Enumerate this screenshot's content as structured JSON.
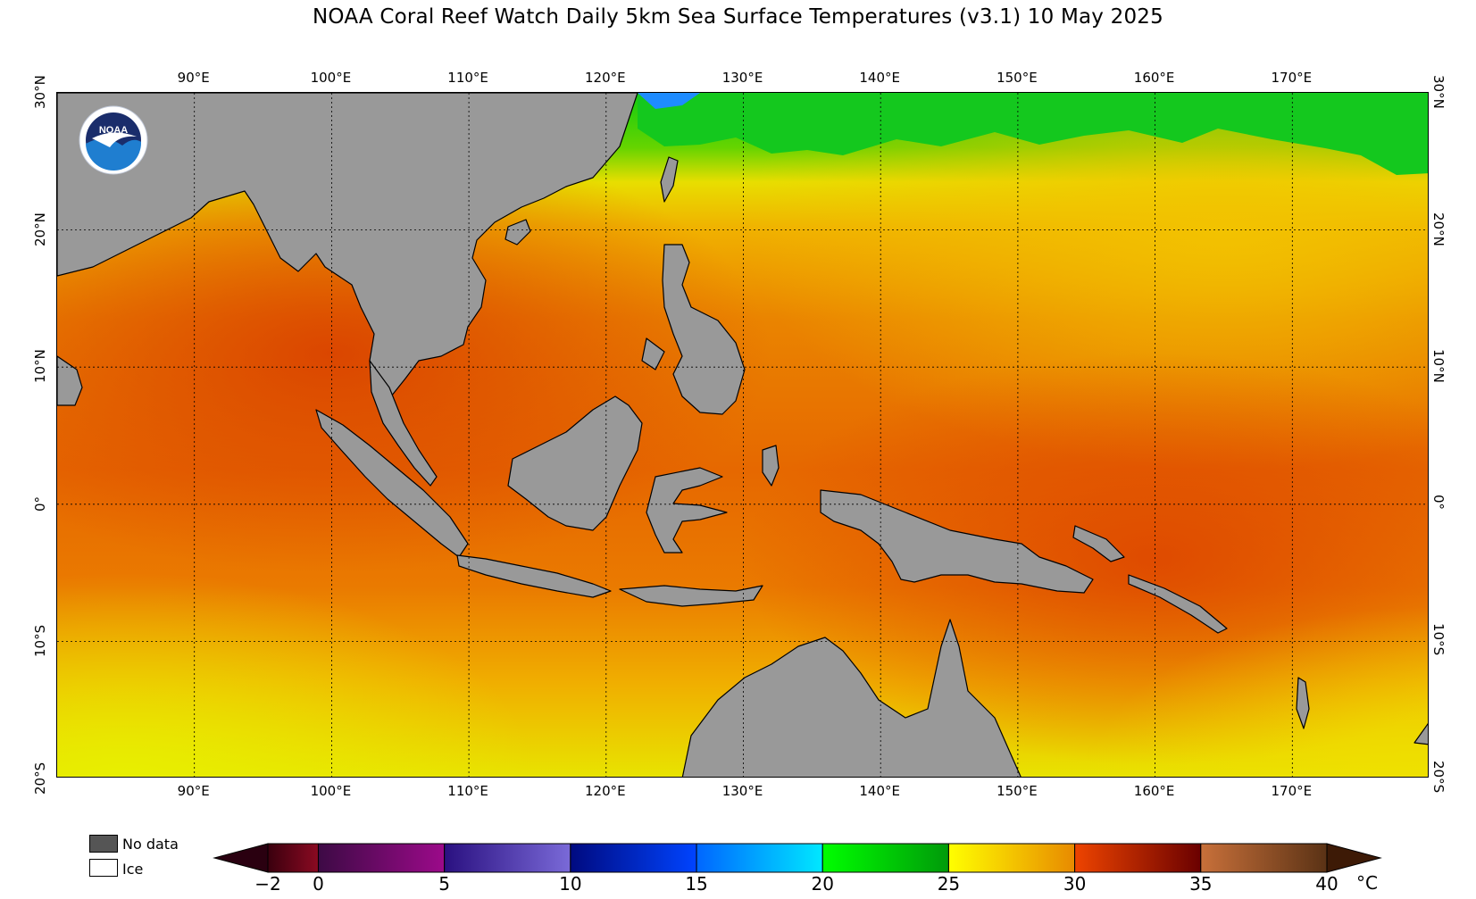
{
  "title": "NOAA Coral Reef Watch Daily 5km Sea Surface Temperatures  (v3.1)   10 May 2025",
  "map": {
    "lon_range": [
      80,
      180
    ],
    "lat_range": [
      -20,
      30
    ],
    "lon_ticks": [
      "90°E",
      "100°E",
      "110°E",
      "120°E",
      "130°E",
      "140°E",
      "150°E",
      "160°E",
      "170°E"
    ],
    "lat_ticks": [
      "30°N",
      "20°N",
      "10°N",
      "0°",
      "10°S",
      "20°S"
    ],
    "land_color": "#999999",
    "logo_text": "NOAA"
  },
  "legend": {
    "no_data_label": "No data",
    "no_data_color": "#555555",
    "ice_label": "Ice",
    "ice_color": "#ffffff"
  },
  "colorbar": {
    "unit": "°C",
    "tick_labels": [
      "−2",
      "0",
      "5",
      "10",
      "15",
      "20",
      "25",
      "30",
      "35",
      "40"
    ],
    "tick_values": [
      -2,
      0,
      5,
      10,
      15,
      20,
      25,
      30,
      35,
      40
    ],
    "under_color": "#2a0010",
    "over_color": "#3d1a06",
    "bands": [
      {
        "from": -2,
        "to": 0,
        "colors": [
          "#3a000e",
          "#8b0a22"
        ]
      },
      {
        "from": 0,
        "to": 5,
        "colors": [
          "#3d0a45",
          "#9c0a8a"
        ]
      },
      {
        "from": 5,
        "to": 10,
        "colors": [
          "#2a1080",
          "#7a6ad8"
        ]
      },
      {
        "from": 10,
        "to": 15,
        "colors": [
          "#000a80",
          "#0044ff"
        ]
      },
      {
        "from": 15,
        "to": 20,
        "colors": [
          "#0066ff",
          "#00e8ff"
        ]
      },
      {
        "from": 20,
        "to": 25,
        "colors": [
          "#00ff00",
          "#009a0a"
        ]
      },
      {
        "from": 25,
        "to": 30,
        "colors": [
          "#ffff00",
          "#e88a00"
        ]
      },
      {
        "from": 30,
        "to": 35,
        "colors": [
          "#ee4400",
          "#6a0000"
        ]
      },
      {
        "from": 35,
        "to": 40,
        "colors": [
          "#c8703a",
          "#5a3215"
        ]
      }
    ]
  }
}
